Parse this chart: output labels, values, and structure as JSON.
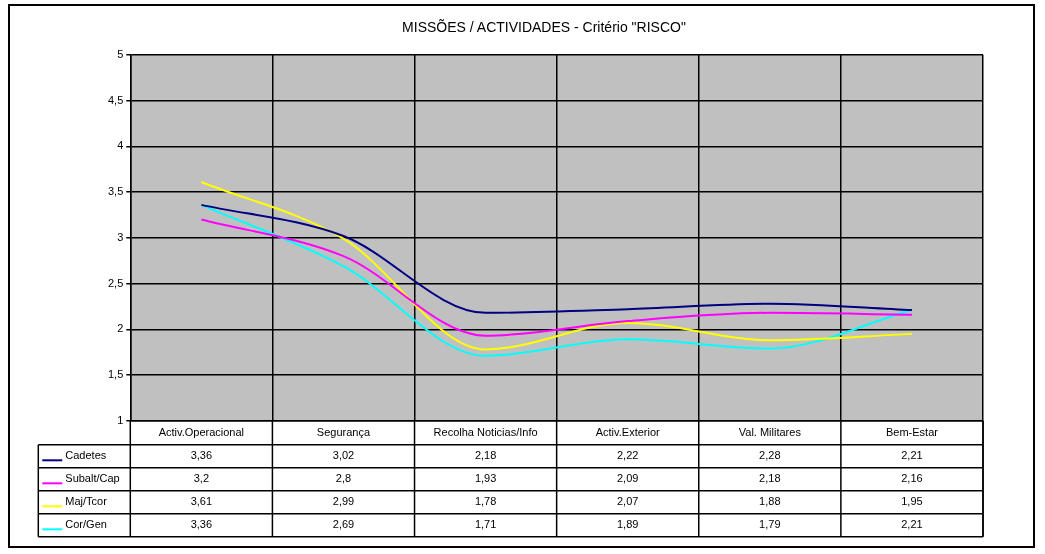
{
  "chart_data": {
    "type": "line",
    "title": "MISSÕES / ACTIVIDADES - Critério \"RISCO\"",
    "categories": [
      "Activ.Operacional",
      "Segurança",
      "Recolha Noticias/Info",
      "Activ.Exterior",
      "Val. Militares",
      "Bem-Estar"
    ],
    "series": [
      {
        "name": "Cadetes",
        "color": "#000080",
        "values": [
          3.36,
          3.02,
          2.18,
          2.22,
          2.28,
          2.21
        ],
        "value_labels": [
          "3,36",
          "3,02",
          "2,18",
          "2,22",
          "2,28",
          "2,21"
        ]
      },
      {
        "name": "Subalt/Cap",
        "color": "#ff00ff",
        "values": [
          3.2,
          2.8,
          1.93,
          2.09,
          2.18,
          2.16
        ],
        "value_labels": [
          "3,2",
          "2,8",
          "1,93",
          "2,09",
          "2,18",
          "2,16"
        ]
      },
      {
        "name": "Maj/Tcor",
        "color": "#ffff00",
        "values": [
          3.61,
          2.99,
          1.78,
          2.07,
          1.88,
          1.95
        ],
        "value_labels": [
          "3,61",
          "2,99",
          "1,78",
          "2,07",
          "1,88",
          "1,95"
        ]
      },
      {
        "name": "Cor/Gen",
        "color": "#00ffff",
        "values": [
          3.36,
          2.69,
          1.71,
          1.89,
          1.79,
          2.21
        ],
        "value_labels": [
          "3,36",
          "2,69",
          "1,71",
          "1,89",
          "1,79",
          "2,21"
        ]
      }
    ],
    "ylim": [
      1,
      5
    ],
    "yticks": [
      1,
      {
        "value": 1.5,
        "label": "1,5"
      },
      2,
      {
        "value": 2.5,
        "label": "2,5"
      },
      3,
      {
        "value": 3.5,
        "label": "3,5"
      },
      4,
      {
        "value": 4.5,
        "label": "4,5"
      },
      5
    ],
    "grid": true,
    "legend": "bottom",
    "marker": "none",
    "line_style": "solid"
  }
}
